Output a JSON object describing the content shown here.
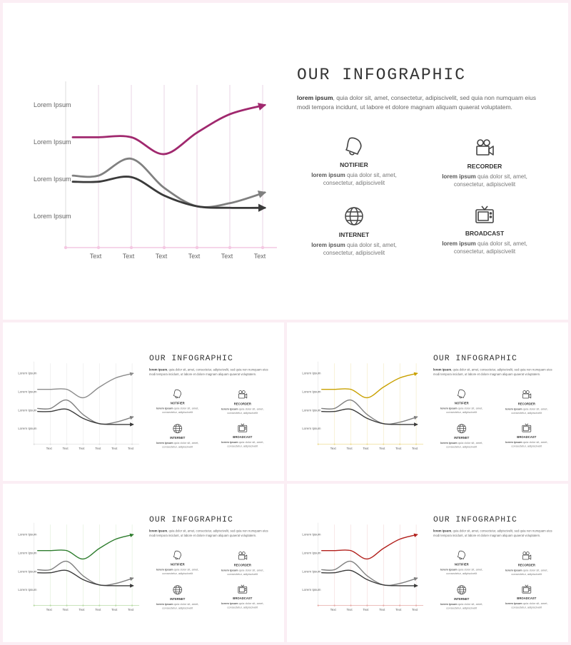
{
  "slide": {
    "title": "OUR INFOGRAPHIC",
    "desc_bold": "lorem ipsum",
    "desc_text": ", quia dolor sit, amet, consectetur, adipiscivelit, sed quia non numquam eius modi tempora incidunt, ut labore et dolore magnam aliquam quaerat voluptatem.",
    "y_labels": [
      "Lorem Ipsum",
      "Lorem Ipsum",
      "Lorem Ipsum",
      "Lorem Ipsum"
    ],
    "x_labels": [
      "Text",
      "Text",
      "Text",
      "Text",
      "Text",
      "Text"
    ],
    "features": [
      {
        "title": "NOTIFIER",
        "desc_bold": "lorem ipsum",
        "desc_text": " quia dolor sit, amet, consectetur, adipiscivelit",
        "icon": "bell-icon"
      },
      {
        "title": "RECORDER",
        "desc_bold": "lorem ipsum",
        "desc_text": " quia dolor sit, amet, consectetur, adipiscivelit",
        "icon": "video-camera-icon"
      },
      {
        "title": "INTERNET",
        "desc_bold": "lorem ipsum",
        "desc_text": " quia dolor sit, amet, consectetur, adipiscivelit",
        "icon": "globe-icon"
      },
      {
        "title": "BROADCAST",
        "desc_bold": "lorem ipsum",
        "desc_text": " quia dolor sit, amet, consectetur, adipiscivelit",
        "icon": "tv-icon"
      }
    ]
  },
  "variants": [
    {
      "accent": "#a0286e",
      "grid": "#ead6e4",
      "axis": "#f4c8e2"
    },
    {
      "accent": "#8c8c8c",
      "grid": "#e4e4e4",
      "axis": "#e0e0e0"
    },
    {
      "accent": "#c9a100",
      "grid": "#f1e5b4",
      "axis": "#eedd96"
    },
    {
      "accent": "#2e7d2e",
      "grid": "#d9ebcf",
      "axis": "#b9dba6"
    },
    {
      "accent": "#b2201c",
      "grid": "#f0d2d0",
      "axis": "#e6aaa6"
    }
  ],
  "chart_data": {
    "type": "line",
    "categories": [
      "Text",
      "Text",
      "Text",
      "Text",
      "Text",
      "Text"
    ],
    "series": [
      {
        "values": [
          3.55,
          3.55,
          3.0,
          3.7,
          4.3,
          4.6
        ],
        "color": "accent"
      },
      {
        "values": [
          2.3,
          2.85,
          1.9,
          1.3,
          1.4,
          1.75
        ],
        "color": "#808080"
      },
      {
        "values": [
          2.1,
          2.25,
          1.65,
          1.3,
          1.25,
          1.25
        ],
        "color": "#3a3a3a"
      }
    ]
  }
}
